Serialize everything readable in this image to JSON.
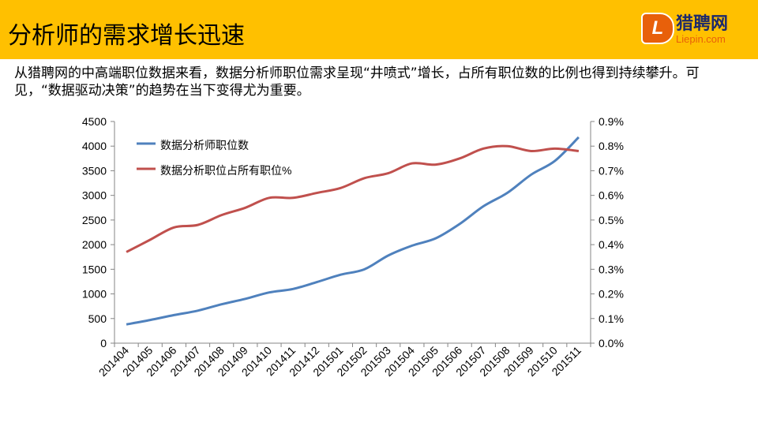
{
  "header": {
    "title": "分析师的需求增长迅速",
    "logo_cn": "猎聘网",
    "logo_en": "Liepin.com",
    "logo_letter": "L"
  },
  "description": "从猎聘网的中高端职位数据来看，数据分析师职位需求呈现“井喷式”增长，占所有职位数的比例也得到持续攀升。可见，“数据驱动决策”的趋势在当下变得尤为重要。",
  "colors": {
    "header": "#FFC000",
    "series1": "#4F81BD",
    "series2": "#C0504D"
  },
  "chart_data": {
    "type": "line",
    "categories": [
      "201404",
      "201405",
      "201406",
      "201407",
      "201408",
      "201409",
      "201410",
      "201411",
      "201412",
      "201501",
      "201502",
      "201503",
      "201504",
      "201505",
      "201506",
      "201507",
      "201508",
      "201509",
      "201510",
      "201511"
    ],
    "series": [
      {
        "name": "数据分析师职位数",
        "axis": "left",
        "values": [
          380,
          470,
          570,
          660,
          790,
          900,
          1030,
          1100,
          1240,
          1390,
          1500,
          1780,
          1980,
          2130,
          2420,
          2780,
          3050,
          3420,
          3700,
          4180
        ]
      },
      {
        "name": "数据分析职位占所有职位%",
        "axis": "right",
        "values": [
          0.37,
          0.42,
          0.47,
          0.48,
          0.52,
          0.55,
          0.59,
          0.59,
          0.61,
          0.63,
          0.67,
          0.69,
          0.73,
          0.725,
          0.75,
          0.79,
          0.8,
          0.78,
          0.79,
          0.78
        ]
      }
    ],
    "ylim": [
      0,
      4500
    ],
    "y_ticks": [
      "0",
      "500",
      "1000",
      "1500",
      "2000",
      "2500",
      "3000",
      "3500",
      "4000",
      "4500"
    ],
    "y2lim": [
      0,
      0.9
    ],
    "y2_ticks": [
      "0.0%",
      "0.1%",
      "0.2%",
      "0.3%",
      "0.4%",
      "0.5%",
      "0.6%",
      "0.7%",
      "0.8%",
      "0.9%"
    ],
    "legend": "top-left",
    "grid": false
  }
}
